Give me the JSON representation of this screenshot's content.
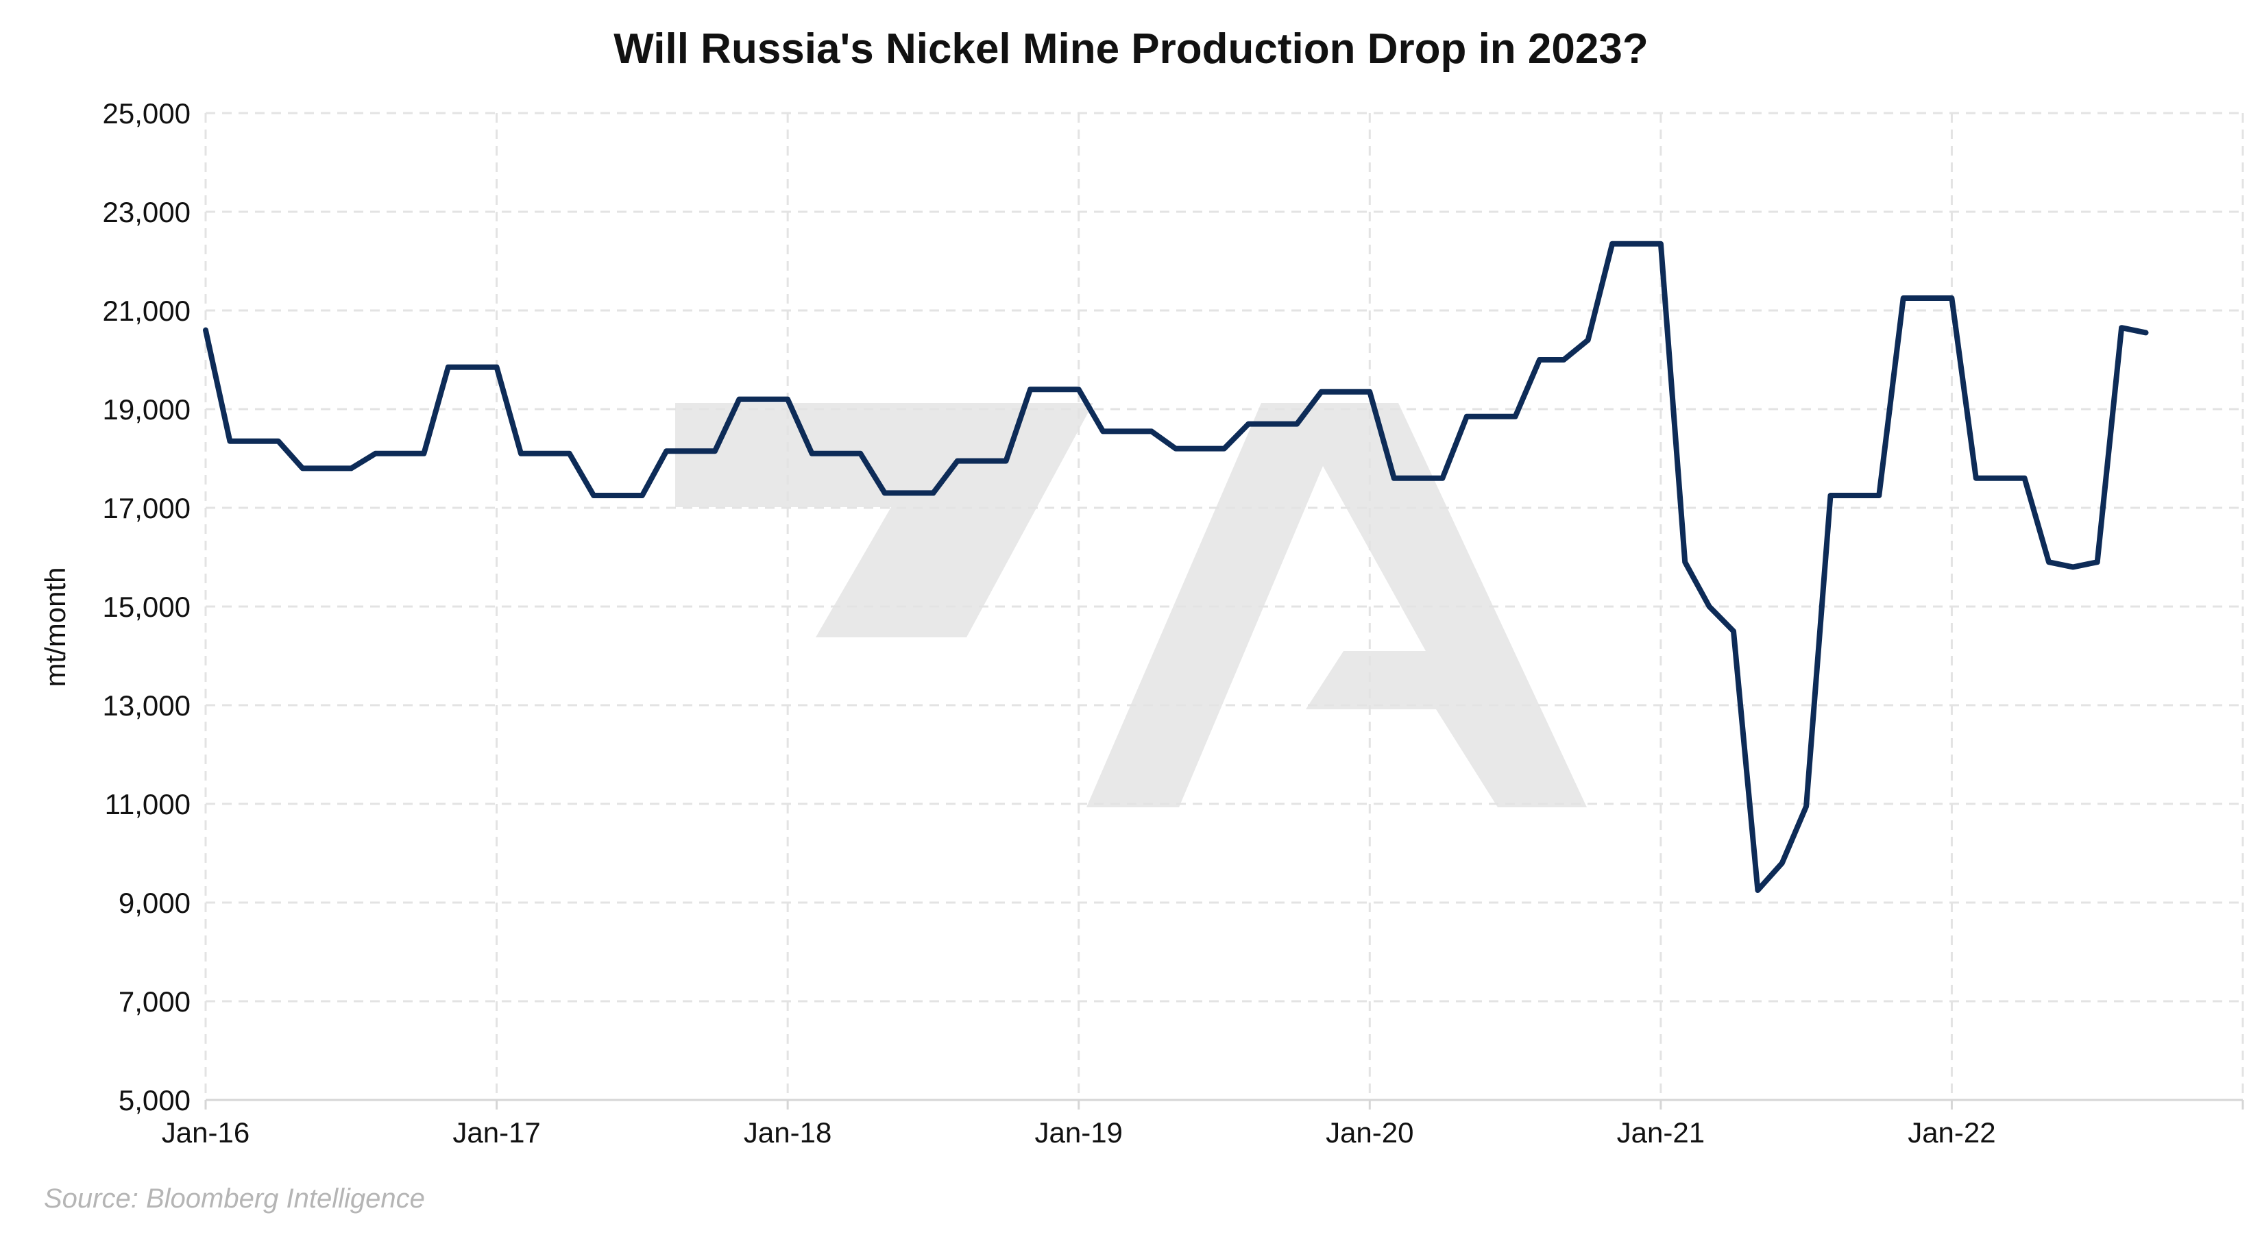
{
  "chart_data": {
    "type": "line",
    "title": "Will Russia's Nickel Mine Production Drop in 2023?",
    "xlabel": "",
    "ylabel": "mt/month",
    "ylim": [
      5000,
      25000
    ],
    "yticks": [
      5000,
      7000,
      9000,
      11000,
      13000,
      15000,
      17000,
      19000,
      21000,
      23000,
      25000
    ],
    "ytick_labels": [
      "5,000",
      "7,000",
      "9,000",
      "11,000",
      "13,000",
      "15,000",
      "17,000",
      "19,000",
      "21,000",
      "23,000",
      "25,000"
    ],
    "xlim": [
      "2016-01",
      "2023-01"
    ],
    "xticks": [
      "2016-01",
      "2017-01",
      "2018-01",
      "2019-01",
      "2020-01",
      "2021-01",
      "2022-01",
      "2023-01"
    ],
    "xtick_labels": [
      "Jan-16",
      "Jan-17",
      "Jan-18",
      "Jan-19",
      "Jan-20",
      "Jan-21",
      "Jan-22",
      ""
    ],
    "grid": true,
    "legend": "none",
    "line_color": "#0d2b57",
    "series": [
      {
        "x": [
          "2016-01",
          "2016-02",
          "2016-03",
          "2016-04",
          "2016-05",
          "2016-06",
          "2016-07",
          "2016-08",
          "2016-09",
          "2016-10",
          "2016-11",
          "2016-12",
          "2017-01",
          "2017-02",
          "2017-03",
          "2017-04",
          "2017-05",
          "2017-06",
          "2017-07",
          "2017-08",
          "2017-09",
          "2017-10",
          "2017-11",
          "2017-12",
          "2018-01",
          "2018-02",
          "2018-03",
          "2018-04",
          "2018-05",
          "2018-06",
          "2018-07",
          "2018-08",
          "2018-09",
          "2018-10",
          "2018-11",
          "2018-12",
          "2019-01",
          "2019-02",
          "2019-03",
          "2019-04",
          "2019-05",
          "2019-06",
          "2019-07",
          "2019-08",
          "2019-09",
          "2019-10",
          "2019-11",
          "2019-12",
          "2020-01",
          "2020-02",
          "2020-03",
          "2020-04",
          "2020-05",
          "2020-06",
          "2020-07",
          "2020-08",
          "2020-09",
          "2020-10",
          "2020-11",
          "2020-12",
          "2021-01",
          "2021-02",
          "2021-03",
          "2021-04",
          "2021-05",
          "2021-06",
          "2021-07",
          "2021-08",
          "2021-09",
          "2021-10",
          "2021-11",
          "2021-12",
          "2022-01",
          "2022-02",
          "2022-03",
          "2022-04",
          "2022-05",
          "2022-06",
          "2022-07",
          "2022-08",
          "2022-09"
        ],
        "values": [
          20600,
          18350,
          18350,
          18350,
          17800,
          17800,
          17800,
          18100,
          18100,
          18100,
          19850,
          19850,
          19850,
          18100,
          18100,
          18100,
          17250,
          17250,
          17250,
          18150,
          18150,
          18150,
          19200,
          19200,
          19200,
          18100,
          18100,
          18100,
          17300,
          17300,
          17300,
          17950,
          17950,
          17950,
          19400,
          19400,
          19400,
          18550,
          18550,
          18550,
          18200,
          18200,
          18200,
          18700,
          18700,
          18700,
          19350,
          19350,
          19350,
          17600,
          17600,
          17600,
          18850,
          18850,
          18850,
          20000,
          20000,
          20400,
          22350,
          22350,
          22350,
          15900,
          15000,
          14500,
          9250,
          9800,
          10950,
          17250,
          17250,
          17250,
          21250,
          21250,
          21250,
          17600,
          17600,
          17600,
          15900,
          15800,
          15900,
          20650,
          20550
        ]
      }
    ]
  },
  "footer": {
    "source": "Source: Bloomberg Intelligence"
  }
}
